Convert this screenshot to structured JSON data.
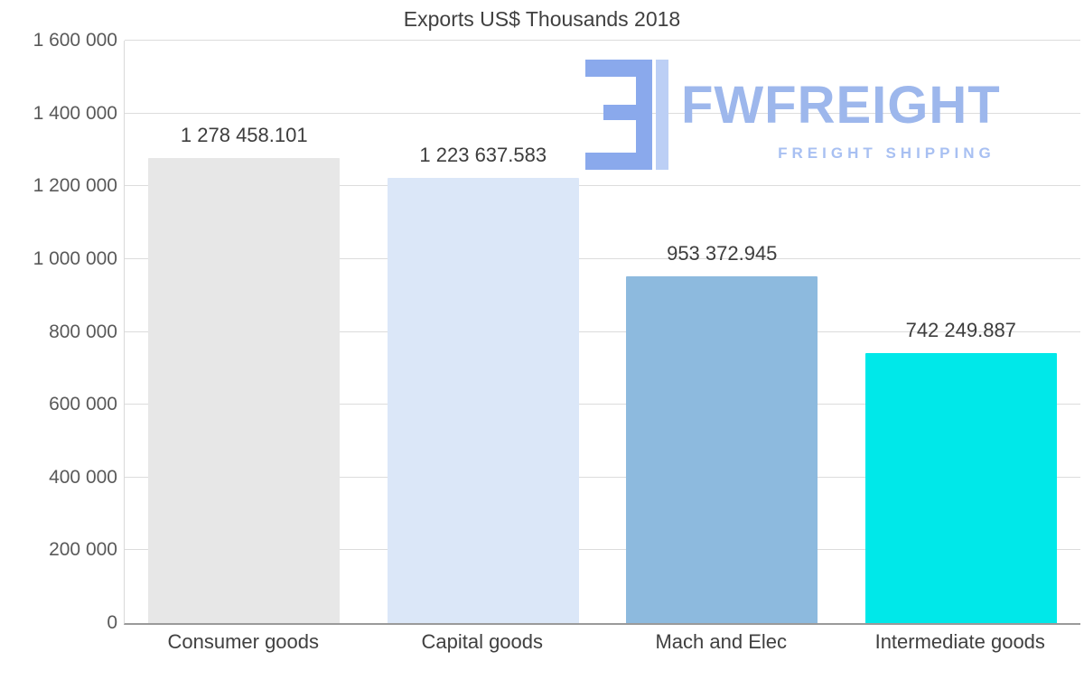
{
  "title": "Exports US$ Thousands 2018",
  "watermark": {
    "brand": "FWFREIGHT",
    "tagline": "FREIGHT SHIPPING",
    "color": "#9db7ec"
  },
  "chart_data": {
    "type": "bar",
    "title": "Exports US$ Thousands 2018",
    "categories": [
      "Consumer goods",
      "Capital goods",
      "Mach and Elec",
      "Intermediate goods"
    ],
    "values": [
      1278458.101,
      1223637.583,
      953372.945,
      742249.887
    ],
    "value_labels": [
      "1 278 458.101",
      "1 223 637.583",
      "953 372.945",
      "742 249.887"
    ],
    "bar_colors": [
      "#e7e7e7",
      "#dbe7f8",
      "#8dbade",
      "#00e8e9"
    ],
    "xlabel": "",
    "ylabel": "",
    "ylim": [
      0,
      1600000
    ],
    "ytick_values": [
      0,
      200000,
      400000,
      600000,
      800000,
      1000000,
      1200000,
      1400000,
      1600000
    ],
    "ytick_labels": [
      "0",
      "200 000",
      "400 000",
      "600 000",
      "800 000",
      "1 000 000",
      "1 200 000",
      "1 400 000",
      "1 600 000"
    ],
    "grid": true,
    "legend": false
  }
}
